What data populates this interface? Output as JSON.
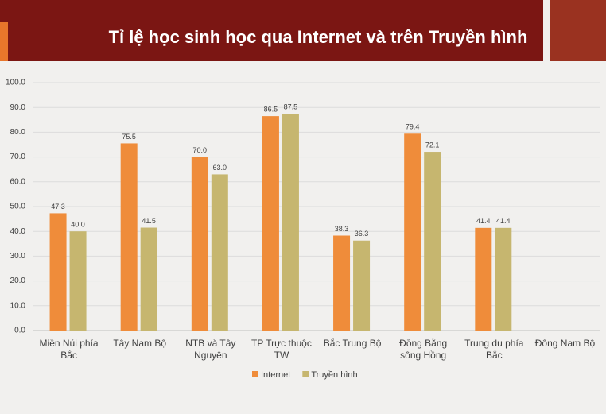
{
  "chart_data": {
    "type": "bar",
    "title": "Tỉ lệ học sinh học qua Internet và trên Truyền hình",
    "categories": [
      "Miền Núi phía Bắc",
      "Tây Nam Bộ",
      "NTB và Tây Nguyên",
      "TP Trực thuộc TW",
      "Bắc Trung Bộ",
      "Đồng Bằng sông Hồng",
      "Trung du phía Bắc",
      "Đông Nam Bộ"
    ],
    "series": [
      {
        "name": "Internet",
        "color": "#ef8c3a",
        "values": [
          47.3,
          75.5,
          70.0,
          86.5,
          38.3,
          79.4,
          41.4,
          null
        ],
        "value_labels": [
          "47.3",
          "75.5",
          "70.0",
          "86.5",
          "38.3",
          "79.4",
          "41.4",
          null
        ]
      },
      {
        "name": "Truyền hình",
        "color": "#c6b66f",
        "values": [
          40.0,
          41.5,
          63.0,
          87.5,
          36.3,
          72.1,
          41.4,
          null
        ],
        "value_labels": [
          "40.0",
          "41.5",
          "63.0",
          "87.5",
          "36.3",
          "72.1",
          "41.4",
          null
        ]
      }
    ],
    "ylim": [
      0,
      100
    ],
    "yticks": [
      {
        "value": 0,
        "label": "0.0"
      },
      {
        "value": 10,
        "label": "10.0"
      },
      {
        "value": 20,
        "label": "20.0"
      },
      {
        "value": 30,
        "label": "30.0"
      },
      {
        "value": 40,
        "label": "40.0"
      },
      {
        "value": 50,
        "label": "50.0"
      },
      {
        "value": 60,
        "label": "60.0"
      },
      {
        "value": 70,
        "label": "70.0"
      },
      {
        "value": 80,
        "label": "80.0"
      },
      {
        "value": 90,
        "label": "90.0"
      },
      {
        "value": 100,
        "label": "100.0"
      }
    ],
    "grid": true,
    "legend": "bottom"
  }
}
